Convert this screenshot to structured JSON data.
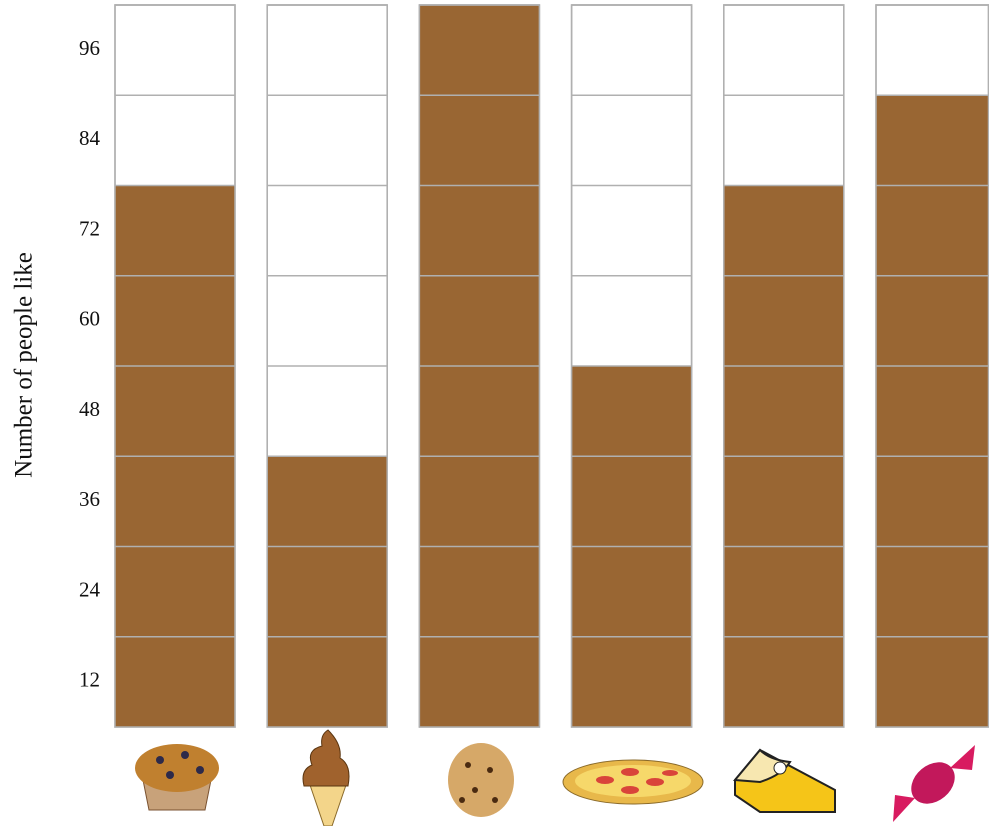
{
  "chart_data": {
    "type": "bar",
    "y_label": "Number of people like",
    "categories": [
      null,
      null,
      null,
      null,
      null,
      null
    ],
    "values": [
      72,
      36,
      96,
      48,
      72,
      84
    ],
    "color": "#996633",
    "ylim": [
      0,
      96
    ],
    "yticks": [
      12,
      24,
      36,
      48,
      60,
      72,
      84,
      96
    ],
    "grid": true
  }
}
